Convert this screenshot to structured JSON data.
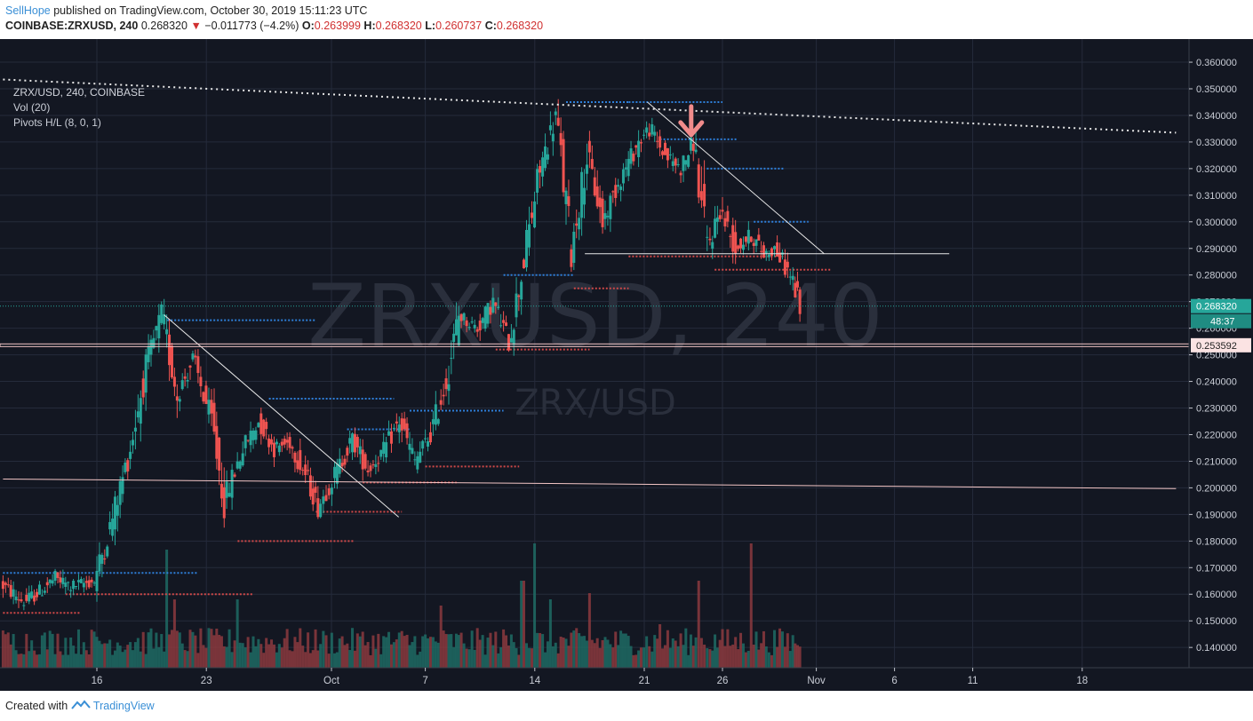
{
  "header": {
    "author": "SellHope",
    "published_text": "published on TradingView.com, October 30, 2019 15:11:23 UTC",
    "symbol": "COINBASE:ZRXUSD, 240",
    "last": "0.268320",
    "change": "−0.011773 (−4.2%)",
    "o_label": "O:",
    "o": "0.263999",
    "h_label": "H:",
    "h": "0.268320",
    "l_label": "L:",
    "l": "0.260737",
    "c_label": "C:",
    "c": "0.268320"
  },
  "legend": {
    "title": "ZRX/USD, 240, COINBASE",
    "volume": "Vol (20)",
    "pivots": "Pivots H/L (8, 0, 1)"
  },
  "watermark": {
    "big": "ZRXUSD, 240",
    "small": "ZRX/USD"
  },
  "footer": {
    "created_with": "Created with",
    "brand": "TradingView"
  },
  "colors": {
    "background": "#131722",
    "grid": "#252b3b",
    "up": "#26a69a",
    "down": "#ef5350",
    "pivot_high": "#2e7fd9",
    "pivot_low": "#d04848",
    "trendline": "#e8e8e8",
    "support": "#f3c6c6",
    "arrow": "#f08b8b"
  },
  "chart_data": {
    "type": "candlestick",
    "symbol": "ZRX/USD",
    "exchange": "COINBASE",
    "interval": "240",
    "y_range": [
      0.1315,
      0.3675
    ],
    "y_ticks": [
      "0.360000",
      "0.350000",
      "0.340000",
      "0.330000",
      "0.320000",
      "0.310000",
      "0.300000",
      "0.290000",
      "0.280000",
      "0.270000",
      "0.260000",
      "0.250000",
      "0.240000",
      "0.230000",
      "0.220000",
      "0.210000",
      "0.200000",
      "0.190000",
      "0.180000",
      "0.170000",
      "0.160000",
      "0.150000",
      "0.140000"
    ],
    "y_tick_values": [
      0.36,
      0.35,
      0.34,
      0.33,
      0.32,
      0.31,
      0.3,
      0.29,
      0.28,
      0.27,
      0.26,
      0.25,
      0.24,
      0.23,
      0.22,
      0.21,
      0.2,
      0.19,
      0.18,
      0.17,
      0.16,
      0.15,
      0.14
    ],
    "x_ticks": [
      {
        "label": "16",
        "day": 16
      },
      {
        "label": "23",
        "day": 23
      },
      {
        "label": "Oct",
        "day": 31
      },
      {
        "label": "7",
        "day": 37
      },
      {
        "label": "14",
        "day": 44
      },
      {
        "label": "21",
        "day": 51
      },
      {
        "label": "26",
        "day": 56
      },
      {
        "label": "Nov",
        "day": 62
      },
      {
        "label": "6",
        "day": 67
      },
      {
        "label": "11",
        "day": 72
      },
      {
        "label": "18",
        "day": 79
      }
    ],
    "x_day_range": [
      10,
      85
    ],
    "last_price": {
      "value": 0.26832,
      "label": "0.268320",
      "countdown": "48:37"
    },
    "support_level": {
      "value": 0.253592,
      "label": "0.253592"
    },
    "candle_anchors": [
      {
        "day": 10.0,
        "price": 0.164
      },
      {
        "day": 11.5,
        "price": 0.157
      },
      {
        "day": 12.5,
        "price": 0.161
      },
      {
        "day": 13.5,
        "price": 0.166
      },
      {
        "day": 14.5,
        "price": 0.163
      },
      {
        "day": 16.0,
        "price": 0.165
      },
      {
        "day": 17.0,
        "price": 0.185
      },
      {
        "day": 18.3,
        "price": 0.215
      },
      {
        "day": 19.3,
        "price": 0.245
      },
      {
        "day": 20.3,
        "price": 0.265
      },
      {
        "day": 21.3,
        "price": 0.235
      },
      {
        "day": 22.3,
        "price": 0.248
      },
      {
        "day": 23.5,
        "price": 0.225
      },
      {
        "day": 24.3,
        "price": 0.195
      },
      {
        "day": 25.5,
        "price": 0.215
      },
      {
        "day": 26.5,
        "price": 0.225
      },
      {
        "day": 27.5,
        "price": 0.215
      },
      {
        "day": 28.5,
        "price": 0.217
      },
      {
        "day": 29.5,
        "price": 0.205
      },
      {
        "day": 30.3,
        "price": 0.193
      },
      {
        "day": 31.2,
        "price": 0.203
      },
      {
        "day": 32.5,
        "price": 0.218
      },
      {
        "day": 33.5,
        "price": 0.207
      },
      {
        "day": 34.5,
        "price": 0.214
      },
      {
        "day": 35.5,
        "price": 0.225
      },
      {
        "day": 36.5,
        "price": 0.21
      },
      {
        "day": 37.5,
        "price": 0.22
      },
      {
        "day": 38.5,
        "price": 0.24
      },
      {
        "day": 39.3,
        "price": 0.265
      },
      {
        "day": 40.5,
        "price": 0.26
      },
      {
        "day": 41.5,
        "price": 0.27
      },
      {
        "day": 42.5,
        "price": 0.255
      },
      {
        "day": 43.3,
        "price": 0.28
      },
      {
        "day": 44.5,
        "price": 0.32
      },
      {
        "day": 45.5,
        "price": 0.34
      },
      {
        "day": 46.5,
        "price": 0.29
      },
      {
        "day": 47.5,
        "price": 0.325
      },
      {
        "day": 48.5,
        "price": 0.3
      },
      {
        "day": 49.5,
        "price": 0.315
      },
      {
        "day": 50.8,
        "price": 0.33
      },
      {
        "day": 51.5,
        "price": 0.335
      },
      {
        "day": 52.5,
        "price": 0.325
      },
      {
        "day": 53.5,
        "price": 0.32
      },
      {
        "day": 54.3,
        "price": 0.33
      },
      {
        "day": 55.2,
        "price": 0.29
      },
      {
        "day": 56.0,
        "price": 0.305
      },
      {
        "day": 57.0,
        "price": 0.29
      },
      {
        "day": 58.0,
        "price": 0.295
      },
      {
        "day": 58.8,
        "price": 0.288
      },
      {
        "day": 59.5,
        "price": 0.29
      },
      {
        "day": 60.5,
        "price": 0.28
      },
      {
        "day": 61.1,
        "price": 0.2685
      }
    ],
    "volume_spikes": [
      {
        "day": 20.5,
        "rel": 0.95
      },
      {
        "day": 21.0,
        "rel": 0.55
      },
      {
        "day": 25.0,
        "rel": 0.55
      },
      {
        "day": 38.0,
        "rel": 0.5
      },
      {
        "day": 43.2,
        "rel": 0.7
      },
      {
        "day": 44.0,
        "rel": 1.0
      },
      {
        "day": 47.5,
        "rel": 0.6
      },
      {
        "day": 54.5,
        "rel": 0.7
      },
      {
        "day": 57.8,
        "rel": 1.0
      },
      {
        "day": 52.0,
        "rel": 0.35
      },
      {
        "day": 45.0,
        "rel": 0.55
      }
    ],
    "pivot_highs": [
      {
        "day_start": 20.5,
        "day_end": 30,
        "price": 0.263
      },
      {
        "day_start": 27,
        "day_end": 35,
        "price": 0.2335
      },
      {
        "day_start": 36,
        "day_end": 42,
        "price": 0.229
      },
      {
        "day_start": 42,
        "day_end": 46.5,
        "price": 0.28
      },
      {
        "day_start": 46,
        "day_end": 50,
        "price": 0.345
      },
      {
        "day_start": 50,
        "day_end": 56,
        "price": 0.345
      },
      {
        "day_start": 52,
        "day_end": 57,
        "price": 0.331
      },
      {
        "day_start": 55,
        "day_end": 60,
        "price": 0.32
      },
      {
        "day_start": 58,
        "day_end": 61.5,
        "price": 0.3
      },
      {
        "day_start": 10,
        "day_end": 22.5,
        "price": 0.168
      },
      {
        "day_start": 32,
        "day_end": 36,
        "price": 0.222
      }
    ],
    "pivot_lows": [
      {
        "day_start": 10,
        "day_end": 15,
        "price": 0.153
      },
      {
        "day_start": 14,
        "day_end": 26,
        "price": 0.16
      },
      {
        "day_start": 25,
        "day_end": 32.5,
        "price": 0.18
      },
      {
        "day_start": 30,
        "day_end": 35.5,
        "price": 0.191
      },
      {
        "day_start": 37,
        "day_end": 43,
        "price": 0.208
      },
      {
        "day_start": 33,
        "day_end": 39,
        "price": 0.202
      },
      {
        "day_start": 41.5,
        "day_end": 47.5,
        "price": 0.252
      },
      {
        "day_start": 46.5,
        "day_end": 50,
        "price": 0.275
      },
      {
        "day_start": 50,
        "day_end": 60,
        "price": 0.287
      },
      {
        "day_start": 55.5,
        "day_end": 63,
        "price": 0.282
      }
    ],
    "drawings": [
      {
        "type": "trendline",
        "from": {
          "day": 20.3,
          "price": 0.265
        },
        "to": {
          "day": 35.3,
          "price": 0.189
        }
      },
      {
        "type": "trendline",
        "from": {
          "day": 51.2,
          "price": 0.345
        },
        "to": {
          "day": 62.5,
          "price": 0.288
        }
      },
      {
        "type": "horizontal_segment",
        "from": {
          "day": 47.2,
          "price": 0.288
        },
        "to": {
          "day": 70.5,
          "price": 0.288
        }
      },
      {
        "type": "horizontal_line",
        "price": 0.2536
      },
      {
        "type": "dotted_trendline",
        "from": {
          "day": 10,
          "price": 0.3535
        },
        "to": {
          "day": 85,
          "price": 0.3335
        }
      },
      {
        "type": "trendline",
        "from": {
          "day": 10,
          "price": 0.2033
        },
        "to": {
          "day": 85,
          "price": 0.1997
        }
      },
      {
        "type": "arrow_down",
        "at": {
          "day": 54.0,
          "price": 0.33
        }
      }
    ]
  }
}
